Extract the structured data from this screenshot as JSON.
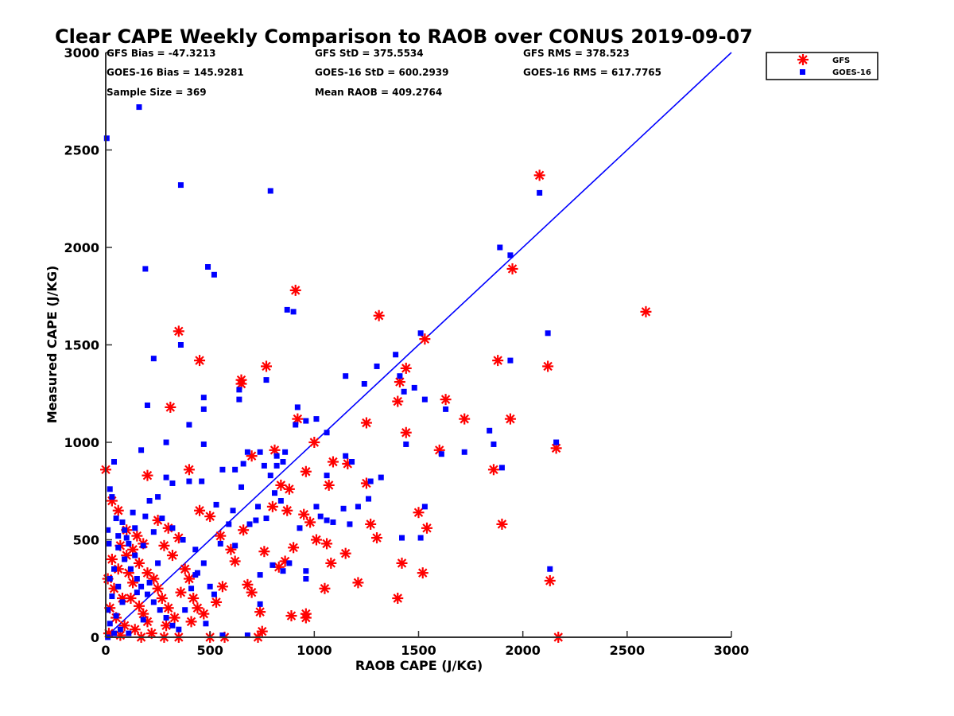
{
  "chart_data": {
    "type": "scatter",
    "title": "Clear CAPE Weekly Comparison to RAOB over CONUS 2019-09-07",
    "xlabel": "RAOB CAPE (J/KG)",
    "ylabel": "Measured CAPE (J/KG)",
    "xlim": [
      0,
      3000
    ],
    "ylim": [
      0,
      3000
    ],
    "xticks": [
      "0",
      "500",
      "1000",
      "1500",
      "2000",
      "2500",
      "3000"
    ],
    "yticks": [
      "0",
      "500",
      "1000",
      "1500",
      "2000",
      "2500",
      "3000"
    ],
    "grid": false,
    "legend": "top-right",
    "reference_line": {
      "x": [
        0,
        3000
      ],
      "y": [
        0,
        3000
      ],
      "color": "#0000ff"
    },
    "stats": {
      "gfs_bias": "GFS Bias = -47.3213",
      "gfs_std": "GFS StD = 375.5534",
      "gfs_rms": "GFS RMS = 378.523",
      "goes_bias": "GOES-16 Bias = 145.9281",
      "goes_std": "GOES-16 StD = 600.2939",
      "goes_rms": "GOES-16 RMS = 617.7765",
      "sample_size": "Sample Size = 369",
      "mean_raob": "Mean RAOB = 409.2764"
    },
    "series": [
      {
        "name": "GFS",
        "marker": "asterisk",
        "color": "#ff0000",
        "points": [
          [
            0,
            860
          ],
          [
            30,
            700
          ],
          [
            60,
            650
          ],
          [
            100,
            550
          ],
          [
            150,
            520
          ],
          [
            200,
            830
          ],
          [
            250,
            600
          ],
          [
            300,
            560
          ],
          [
            350,
            510
          ],
          [
            400,
            860
          ],
          [
            450,
            650
          ],
          [
            500,
            620
          ],
          [
            550,
            520
          ],
          [
            600,
            450
          ],
          [
            650,
            1320
          ],
          [
            700,
            930
          ],
          [
            770,
            1390
          ],
          [
            810,
            960
          ],
          [
            910,
            1780
          ],
          [
            1310,
            1650
          ],
          [
            2080,
            2370
          ],
          [
            1950,
            1890
          ],
          [
            1530,
            1530
          ],
          [
            1440,
            1380
          ],
          [
            1410,
            1310
          ],
          [
            1400,
            1210
          ],
          [
            1250,
            1100
          ],
          [
            1440,
            1050
          ],
          [
            1630,
            1220
          ],
          [
            1720,
            1120
          ],
          [
            1940,
            1120
          ],
          [
            1880,
            1420
          ],
          [
            2120,
            1390
          ],
          [
            2590,
            1670
          ],
          [
            1600,
            960
          ],
          [
            2160,
            970
          ],
          [
            1860,
            860
          ],
          [
            1900,
            580
          ],
          [
            1500,
            640
          ],
          [
            1540,
            560
          ],
          [
            1270,
            580
          ],
          [
            1300,
            510
          ],
          [
            1250,
            790
          ],
          [
            1160,
            890
          ],
          [
            1070,
            780
          ],
          [
            1090,
            900
          ],
          [
            1000,
            1000
          ],
          [
            960,
            850
          ],
          [
            880,
            760
          ],
          [
            840,
            780
          ],
          [
            980,
            590
          ],
          [
            1010,
            500
          ],
          [
            1060,
            480
          ],
          [
            1150,
            430
          ],
          [
            1080,
            380
          ],
          [
            1210,
            280
          ],
          [
            1420,
            380
          ],
          [
            1520,
            330
          ],
          [
            1400,
            200
          ],
          [
            1050,
            250
          ],
          [
            960,
            100
          ],
          [
            960,
            120
          ],
          [
            890,
            110
          ],
          [
            740,
            130
          ],
          [
            750,
            30
          ],
          [
            700,
            230
          ],
          [
            680,
            270
          ],
          [
            620,
            390
          ],
          [
            560,
            260
          ],
          [
            530,
            180
          ],
          [
            500,
            0
          ],
          [
            570,
            0
          ],
          [
            730,
            0
          ],
          [
            350,
            0
          ],
          [
            280,
            0
          ],
          [
            2130,
            290
          ],
          [
            2170,
            0
          ],
          [
            310,
            1180
          ],
          [
            350,
            1570
          ],
          [
            450,
            1420
          ],
          [
            650,
            1300
          ],
          [
            660,
            550
          ],
          [
            800,
            670
          ],
          [
            860,
            390
          ],
          [
            830,
            360
          ],
          [
            900,
            460
          ],
          [
            920,
            1120
          ],
          [
            870,
            650
          ],
          [
            950,
            630
          ],
          [
            760,
            440
          ],
          [
            30,
            400
          ],
          [
            60,
            350
          ],
          [
            10,
            300
          ],
          [
            40,
            250
          ],
          [
            80,
            200
          ],
          [
            20,
            150
          ],
          [
            50,
            100
          ],
          [
            90,
            60
          ],
          [
            15,
            20
          ],
          [
            70,
            10
          ],
          [
            110,
            330
          ],
          [
            130,
            280
          ],
          [
            120,
            200
          ],
          [
            160,
            160
          ],
          [
            180,
            120
          ],
          [
            200,
            80
          ],
          [
            140,
            40
          ],
          [
            170,
            0
          ],
          [
            230,
            300
          ],
          [
            250,
            250
          ],
          [
            270,
            200
          ],
          [
            300,
            150
          ],
          [
            330,
            100
          ],
          [
            290,
            60
          ],
          [
            220,
            20
          ],
          [
            380,
            350
          ],
          [
            400,
            300
          ],
          [
            360,
            230
          ],
          [
            420,
            200
          ],
          [
            440,
            150
          ],
          [
            470,
            120
          ],
          [
            410,
            80
          ],
          [
            320,
            420
          ],
          [
            280,
            470
          ],
          [
            180,
            480
          ],
          [
            130,
            450
          ],
          [
            100,
            420
          ],
          [
            70,
            470
          ],
          [
            160,
            380
          ],
          [
            200,
            330
          ]
        ]
      },
      {
        "name": "GOES-16",
        "marker": "square",
        "color": "#0000ff",
        "points": [
          [
            5,
            2560
          ],
          [
            160,
            2720
          ],
          [
            360,
            2320
          ],
          [
            790,
            2290
          ],
          [
            190,
            1890
          ],
          [
            490,
            1900
          ],
          [
            520,
            1860
          ],
          [
            870,
            1680
          ],
          [
            900,
            1670
          ],
          [
            360,
            1500
          ],
          [
            1890,
            2000
          ],
          [
            1940,
            1960
          ],
          [
            2080,
            2280
          ],
          [
            1510,
            1560
          ],
          [
            1390,
            1450
          ],
          [
            1410,
            1340
          ],
          [
            1430,
            1260
          ],
          [
            1480,
            1280
          ],
          [
            1530,
            1220
          ],
          [
            1630,
            1170
          ],
          [
            1150,
            1340
          ],
          [
            1240,
            1300
          ],
          [
            1300,
            1390
          ],
          [
            1940,
            1420
          ],
          [
            2120,
            1560
          ],
          [
            1840,
            1060
          ],
          [
            1860,
            990
          ],
          [
            1900,
            870
          ],
          [
            2160,
            1000
          ],
          [
            1610,
            940
          ],
          [
            1720,
            950
          ],
          [
            1440,
            990
          ],
          [
            1510,
            510
          ],
          [
            1530,
            670
          ],
          [
            1420,
            510
          ],
          [
            2130,
            350
          ],
          [
            1260,
            710
          ],
          [
            1270,
            800
          ],
          [
            1320,
            820
          ],
          [
            1210,
            670
          ],
          [
            1180,
            900
          ],
          [
            1150,
            930
          ],
          [
            1170,
            580
          ],
          [
            1140,
            660
          ],
          [
            1090,
            590
          ],
          [
            1060,
            600
          ],
          [
            1030,
            620
          ],
          [
            1060,
            1050
          ],
          [
            1010,
            1120
          ],
          [
            960,
            1110
          ],
          [
            920,
            1180
          ],
          [
            910,
            1090
          ],
          [
            860,
            950
          ],
          [
            820,
            930
          ],
          [
            850,
            900
          ],
          [
            790,
            830
          ],
          [
            820,
            880
          ],
          [
            840,
            700
          ],
          [
            810,
            740
          ],
          [
            770,
            1320
          ],
          [
            640,
            1270
          ],
          [
            640,
            1220
          ],
          [
            650,
            770
          ],
          [
            660,
            890
          ],
          [
            620,
            860
          ],
          [
            560,
            860
          ],
          [
            530,
            680
          ],
          [
            610,
            650
          ],
          [
            680,
            950
          ],
          [
            740,
            950
          ],
          [
            760,
            880
          ],
          [
            730,
            670
          ],
          [
            770,
            610
          ],
          [
            690,
            580
          ],
          [
            720,
            600
          ],
          [
            960,
            340
          ],
          [
            960,
            300
          ],
          [
            930,
            560
          ],
          [
            1010,
            670
          ],
          [
            1060,
            830
          ],
          [
            470,
            1230
          ],
          [
            470,
            1170
          ],
          [
            400,
            1090
          ],
          [
            290,
            1000
          ],
          [
            200,
            1190
          ],
          [
            170,
            960
          ],
          [
            470,
            990
          ],
          [
            400,
            800
          ],
          [
            460,
            800
          ],
          [
            320,
            790
          ],
          [
            290,
            820
          ],
          [
            250,
            720
          ],
          [
            210,
            700
          ],
          [
            190,
            620
          ],
          [
            140,
            560
          ],
          [
            100,
            510
          ],
          [
            80,
            590
          ],
          [
            50,
            610
          ],
          [
            20,
            760
          ],
          [
            30,
            720
          ],
          [
            40,
            900
          ],
          [
            10,
            550
          ],
          [
            15,
            480
          ],
          [
            60,
            460
          ],
          [
            90,
            400
          ],
          [
            40,
            350
          ],
          [
            20,
            300
          ],
          [
            60,
            260
          ],
          [
            30,
            210
          ],
          [
            80,
            180
          ],
          [
            10,
            140
          ],
          [
            50,
            110
          ],
          [
            20,
            70
          ],
          [
            70,
            40
          ],
          [
            10,
            0
          ],
          [
            40,
            20
          ],
          [
            120,
            350
          ],
          [
            150,
            300
          ],
          [
            170,
            260
          ],
          [
            200,
            220
          ],
          [
            230,
            180
          ],
          [
            260,
            140
          ],
          [
            290,
            100
          ],
          [
            320,
            60
          ],
          [
            350,
            40
          ],
          [
            380,
            140
          ],
          [
            410,
            250
          ],
          [
            440,
            330
          ],
          [
            470,
            380
          ],
          [
            430,
            450
          ],
          [
            370,
            500
          ],
          [
            320,
            560
          ],
          [
            270,
            610
          ],
          [
            230,
            540
          ],
          [
            180,
            470
          ],
          [
            140,
            420
          ],
          [
            110,
            480
          ],
          [
            90,
            550
          ],
          [
            60,
            520
          ],
          [
            130,
            640
          ],
          [
            230,
            1430
          ],
          [
            500,
            260
          ],
          [
            520,
            220
          ],
          [
            480,
            70
          ],
          [
            680,
            10
          ],
          [
            560,
            10
          ],
          [
            430,
            320
          ],
          [
            550,
            480
          ],
          [
            590,
            580
          ],
          [
            620,
            470
          ],
          [
            740,
            320
          ],
          [
            740,
            170
          ],
          [
            800,
            370
          ],
          [
            850,
            340
          ],
          [
            880,
            380
          ],
          [
            250,
            380
          ],
          [
            210,
            280
          ],
          [
            180,
            90
          ],
          [
            110,
            20
          ],
          [
            150,
            230
          ]
        ]
      }
    ]
  }
}
